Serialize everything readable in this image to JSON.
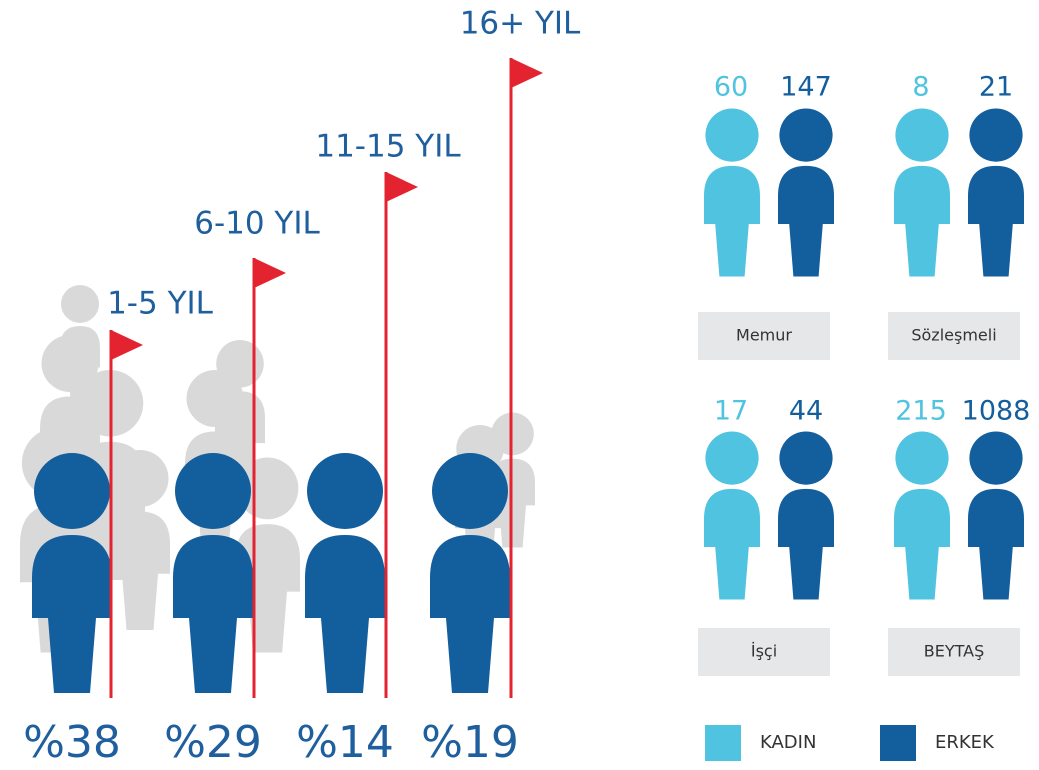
{
  "tenure": [
    {
      "label": "1-5 YIL",
      "share": "%38"
    },
    {
      "label": "6-10 YIL",
      "share": "%29"
    },
    {
      "label": "11-15 YIL",
      "share": "%14"
    },
    {
      "label": "16+ YIL",
      "share": "%19"
    }
  ],
  "staff": [
    {
      "label": "Memur",
      "women": 60,
      "men": 147
    },
    {
      "label": "Sözleşmeli",
      "women": 8,
      "men": 21
    },
    {
      "label": "İşçi",
      "women": 17,
      "men": 44
    },
    {
      "label": "BEYTAŞ",
      "women": 215,
      "men": 1088
    }
  ],
  "legend": {
    "women": "KADIN",
    "men": "ERKEK"
  }
}
